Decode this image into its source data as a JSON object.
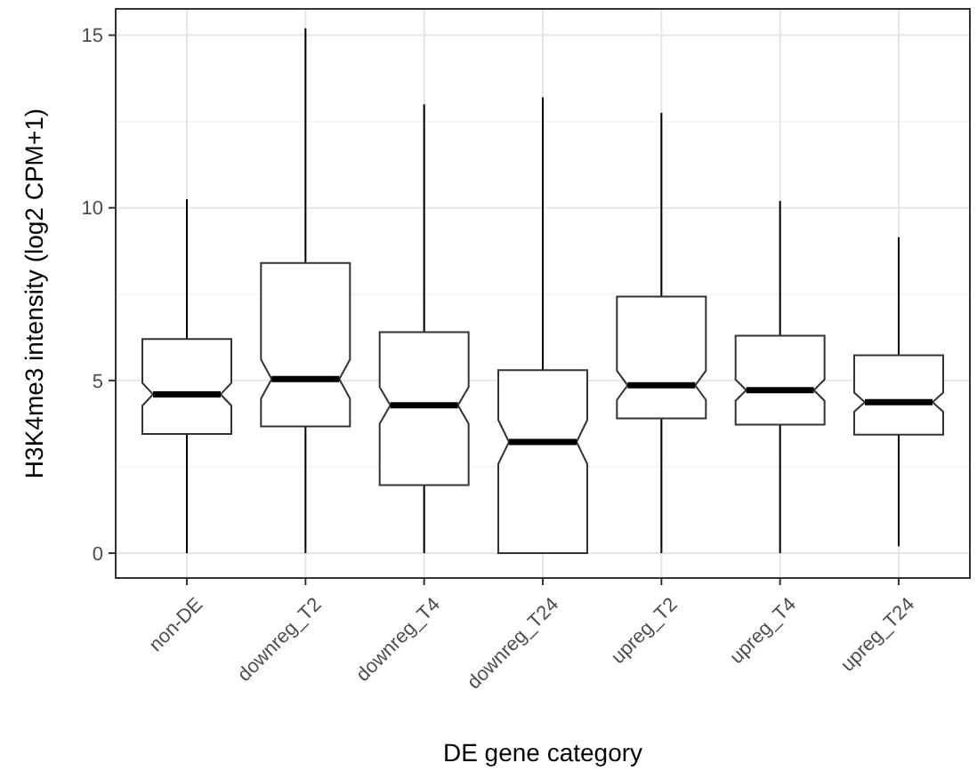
{
  "chart_data": {
    "type": "box",
    "xlabel": "DE gene category",
    "ylabel": "H3K4me3 intensity (log2 CPM+1)",
    "categories": [
      "non-DE",
      "downreg_T2",
      "downreg_T4",
      "downreg_T24",
      "upreg_T2",
      "upreg_T4",
      "upreg_T24"
    ],
    "boxes": [
      {
        "low": 0,
        "q1": 3.45,
        "median": 4.6,
        "q3": 6.2,
        "high": 10.25
      },
      {
        "low": 0,
        "q1": 3.67,
        "median": 5.04,
        "q3": 8.4,
        "high": 15.2
      },
      {
        "low": 0,
        "q1": 1.97,
        "median": 4.28,
        "q3": 6.4,
        "high": 13.0
      },
      {
        "low": 0,
        "q1": 0,
        "median": 3.22,
        "q3": 5.3,
        "high": 13.2
      },
      {
        "low": 0,
        "q1": 3.9,
        "median": 4.86,
        "q3": 7.43,
        "high": 12.75
      },
      {
        "low": 0,
        "q1": 3.72,
        "median": 4.72,
        "q3": 6.3,
        "high": 10.2
      },
      {
        "low": 0.2,
        "q1": 3.43,
        "median": 4.37,
        "q3": 5.73,
        "high": 9.15
      }
    ],
    "ylim": [
      -0.72,
      15.76
    ],
    "yticks": [
      0,
      5,
      10,
      15
    ],
    "grid": true
  }
}
